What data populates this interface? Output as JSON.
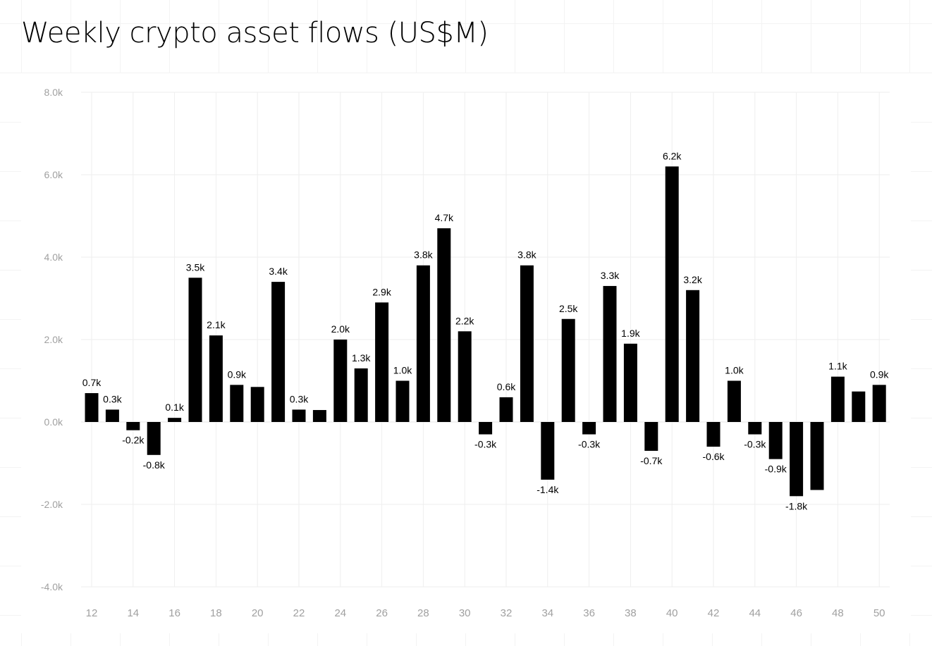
{
  "chart_data": {
    "type": "bar",
    "title": "Weekly crypto asset flows (US$M)",
    "xlabel": "",
    "ylabel": "",
    "ylim": [
      -4000,
      8000
    ],
    "yticks": [
      -4000,
      -2000,
      0,
      2000,
      4000,
      6000,
      8000
    ],
    "ytick_labels": [
      "-4.0k",
      "-2.0k",
      "0.0k",
      "2.0k",
      "4.0k",
      "6.0k",
      "8.0k"
    ],
    "xticks": [
      12,
      14,
      16,
      18,
      20,
      22,
      24,
      26,
      28,
      30,
      32,
      34,
      36,
      38,
      40,
      42,
      44,
      46,
      48,
      50
    ],
    "grid": true,
    "bar_color": "#000000",
    "categories": [
      12,
      13,
      14,
      15,
      16,
      17,
      18,
      19,
      20,
      21,
      22,
      23,
      24,
      25,
      26,
      27,
      28,
      29,
      30,
      31,
      32,
      33,
      34,
      35,
      36,
      37,
      38,
      39,
      40,
      41,
      42,
      43,
      44,
      45,
      46,
      47,
      48,
      49,
      50
    ],
    "values": [
      700,
      300,
      -200,
      -800,
      100,
      3500,
      2100,
      900,
      850,
      3400,
      300,
      290,
      2000,
      1300,
      2900,
      1000,
      3800,
      4700,
      2200,
      -300,
      600,
      3800,
      -1400,
      2500,
      -300,
      3300,
      1900,
      -700,
      6200,
      3200,
      -600,
      1000,
      -300,
      -900,
      -1800,
      -1650,
      1100,
      740,
      900
    ],
    "data_labels": [
      "0.7k",
      "0.3k",
      "-0.2k",
      "-0.8k",
      "0.1k",
      "3.5k",
      "2.1k",
      "0.9k",
      "",
      "3.4k",
      "0.3k",
      "",
      "2.0k",
      "1.3k",
      "2.9k",
      "1.0k",
      "3.8k",
      "4.7k",
      "2.2k",
      "-0.3k",
      "0.6k",
      "3.8k",
      "-1.4k",
      "2.5k",
      "-0.3k",
      "3.3k",
      "1.9k",
      "-0.7k",
      "6.2k",
      "3.2k",
      "-0.6k",
      "1.0k",
      "-0.3k",
      "-0.9k",
      "-1.8k",
      "",
      "1.1k",
      "",
      "0.9k"
    ]
  }
}
